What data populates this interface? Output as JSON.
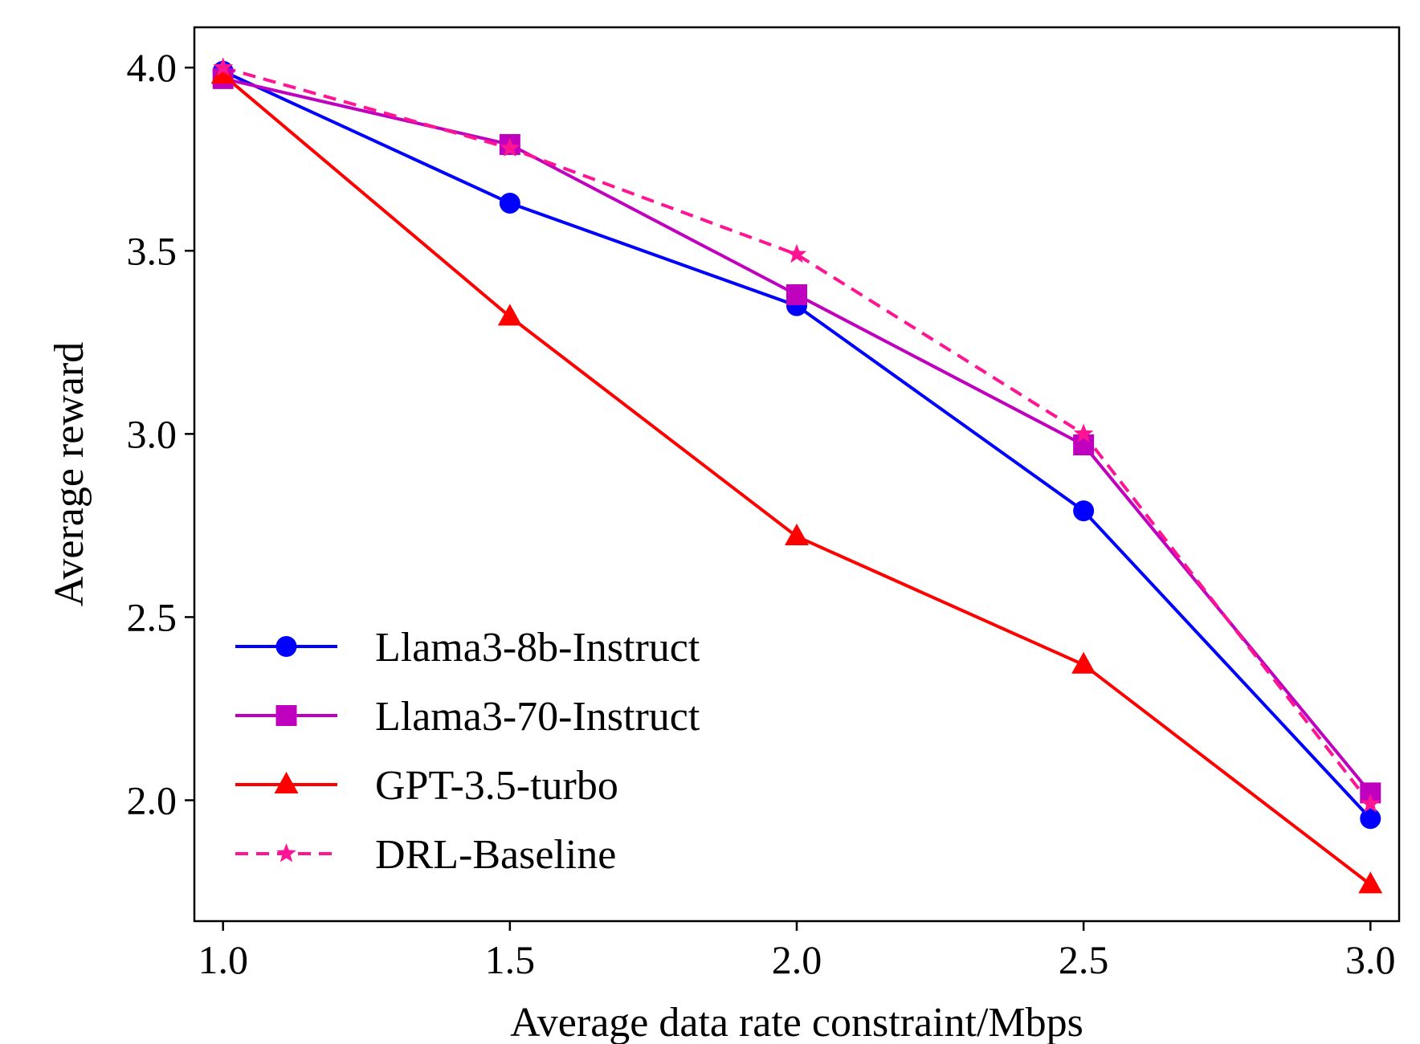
{
  "chart_data": {
    "type": "line",
    "title": "",
    "xlabel": "Average data rate constraint/Mbps",
    "ylabel": "Average reward",
    "x": [
      1.0,
      1.5,
      2.0,
      2.5,
      3.0
    ],
    "xlim": [
      0.95,
      3.05
    ],
    "ylim": [
      1.67,
      4.11
    ],
    "xticks": [
      "1.0",
      "1.5",
      "2.0",
      "2.5",
      "3.0"
    ],
    "xtick_values": [
      1.0,
      1.5,
      2.0,
      2.5,
      3.0
    ],
    "yticks": [
      "2.0",
      "2.5",
      "3.0",
      "3.5",
      "4.0"
    ],
    "ytick_values": [
      2.0,
      2.5,
      3.0,
      3.5,
      4.0
    ],
    "grid": false,
    "legend_position": "bottom-left",
    "series": [
      {
        "name": "Llama3-8b-Instruct",
        "values": [
          3.99,
          3.63,
          3.35,
          2.79,
          1.95
        ],
        "color": "#0000ff",
        "marker": "circle",
        "dash": "solid"
      },
      {
        "name": "Llama3-70-Instruct",
        "values": [
          3.97,
          3.79,
          3.38,
          2.97,
          2.02
        ],
        "color": "#bf00bf",
        "marker": "square",
        "dash": "solid"
      },
      {
        "name": "GPT-3.5-turbo",
        "values": [
          3.98,
          3.32,
          2.72,
          2.37,
          1.77
        ],
        "color": "#ff0000",
        "marker": "triangle",
        "dash": "solid"
      },
      {
        "name": "DRL-Baseline",
        "values": [
          4.0,
          3.78,
          3.49,
          3.0,
          1.99
        ],
        "color": "#ff1493",
        "marker": "star",
        "dash": "dashed"
      }
    ]
  }
}
